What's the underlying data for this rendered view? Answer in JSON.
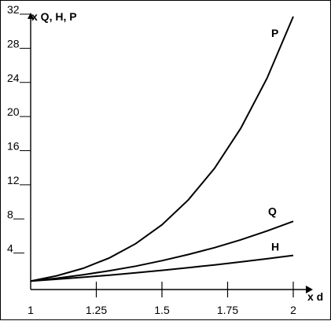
{
  "chart_data": {
    "type": "line",
    "xlabel": "x d",
    "ylabel": "x Q, H, P",
    "xlim": [
      1,
      2
    ],
    "ylim": [
      0,
      32
    ],
    "x_ticks": [
      "1",
      "1.25",
      "1.5",
      "1.75",
      "2"
    ],
    "y_ticks": [
      "4",
      "8",
      "12",
      "16",
      "20",
      "24",
      "28",
      "32"
    ],
    "grid": false,
    "series": [
      {
        "name": "P",
        "x": [
          1,
          1.1,
          1.2,
          1.3,
          1.4,
          1.5,
          1.6,
          1.7,
          1.8,
          1.9,
          2
        ],
        "y": [
          1,
          1.61,
          2.49,
          3.71,
          5.38,
          7.59,
          10.49,
          14.2,
          18.9,
          24.76,
          32
        ]
      },
      {
        "name": "Q",
        "x": [
          1,
          1.1,
          1.2,
          1.3,
          1.4,
          1.5,
          1.6,
          1.7,
          1.8,
          1.9,
          2
        ],
        "y": [
          1,
          1.33,
          1.73,
          2.2,
          2.74,
          3.38,
          4.1,
          4.91,
          5.83,
          6.86,
          8
        ]
      },
      {
        "name": "H",
        "x": [
          1,
          1.1,
          1.2,
          1.3,
          1.4,
          1.5,
          1.6,
          1.7,
          1.8,
          1.9,
          2
        ],
        "y": [
          1,
          1.21,
          1.44,
          1.69,
          1.96,
          2.25,
          2.56,
          2.89,
          3.24,
          3.61,
          4
        ]
      }
    ]
  }
}
